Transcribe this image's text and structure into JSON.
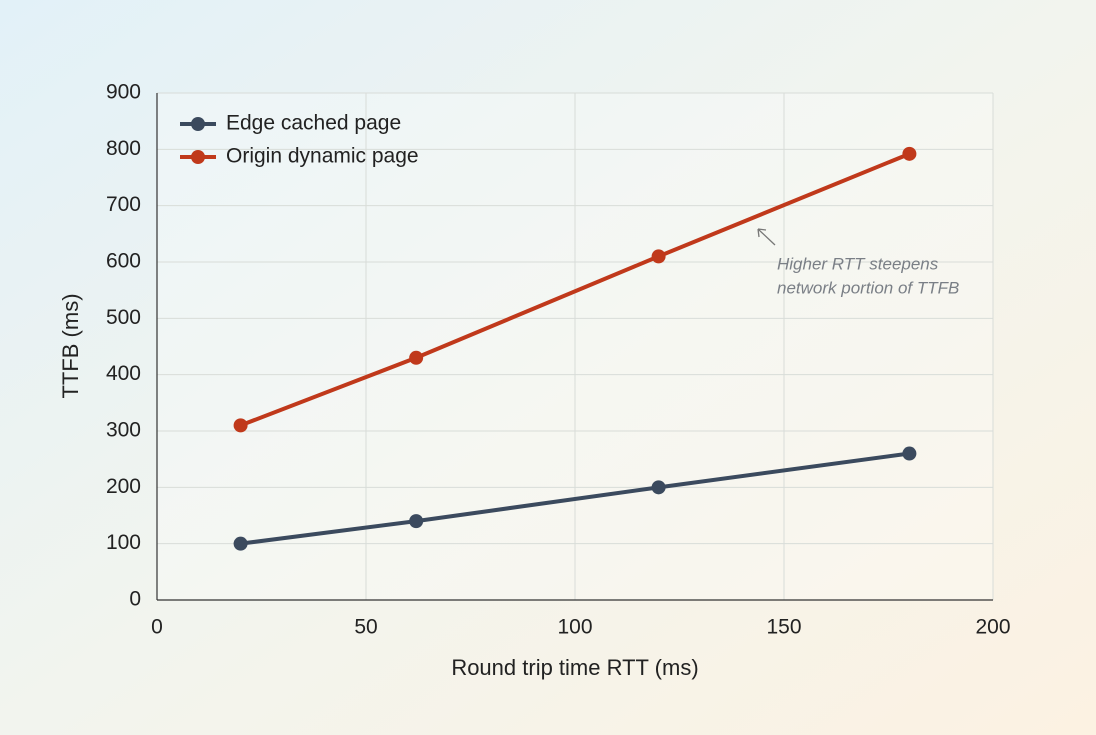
{
  "chart_data": {
    "type": "line",
    "x_label": "Round trip time RTT (ms)",
    "y_label": "TTFB (ms)",
    "x": [
      20,
      62,
      120,
      180
    ],
    "series": [
      {
        "name": "Edge cached page",
        "color": "#3b4a5e",
        "values": [
          100,
          140,
          200,
          260
        ]
      },
      {
        "name": "Origin dynamic page",
        "color": "#c0391b",
        "values": [
          310,
          430,
          610,
          792
        ]
      }
    ],
    "xlim": [
      0,
      200
    ],
    "xticks": [
      0,
      50,
      100,
      150,
      200
    ],
    "ylim": [
      0,
      900
    ],
    "yticks": [
      0,
      100,
      200,
      300,
      400,
      500,
      600,
      700,
      800,
      900
    ],
    "grid": true,
    "legend": "upper left",
    "annotation": [
      "Higher RTT steepens",
      "network portion of TTFB"
    ]
  }
}
